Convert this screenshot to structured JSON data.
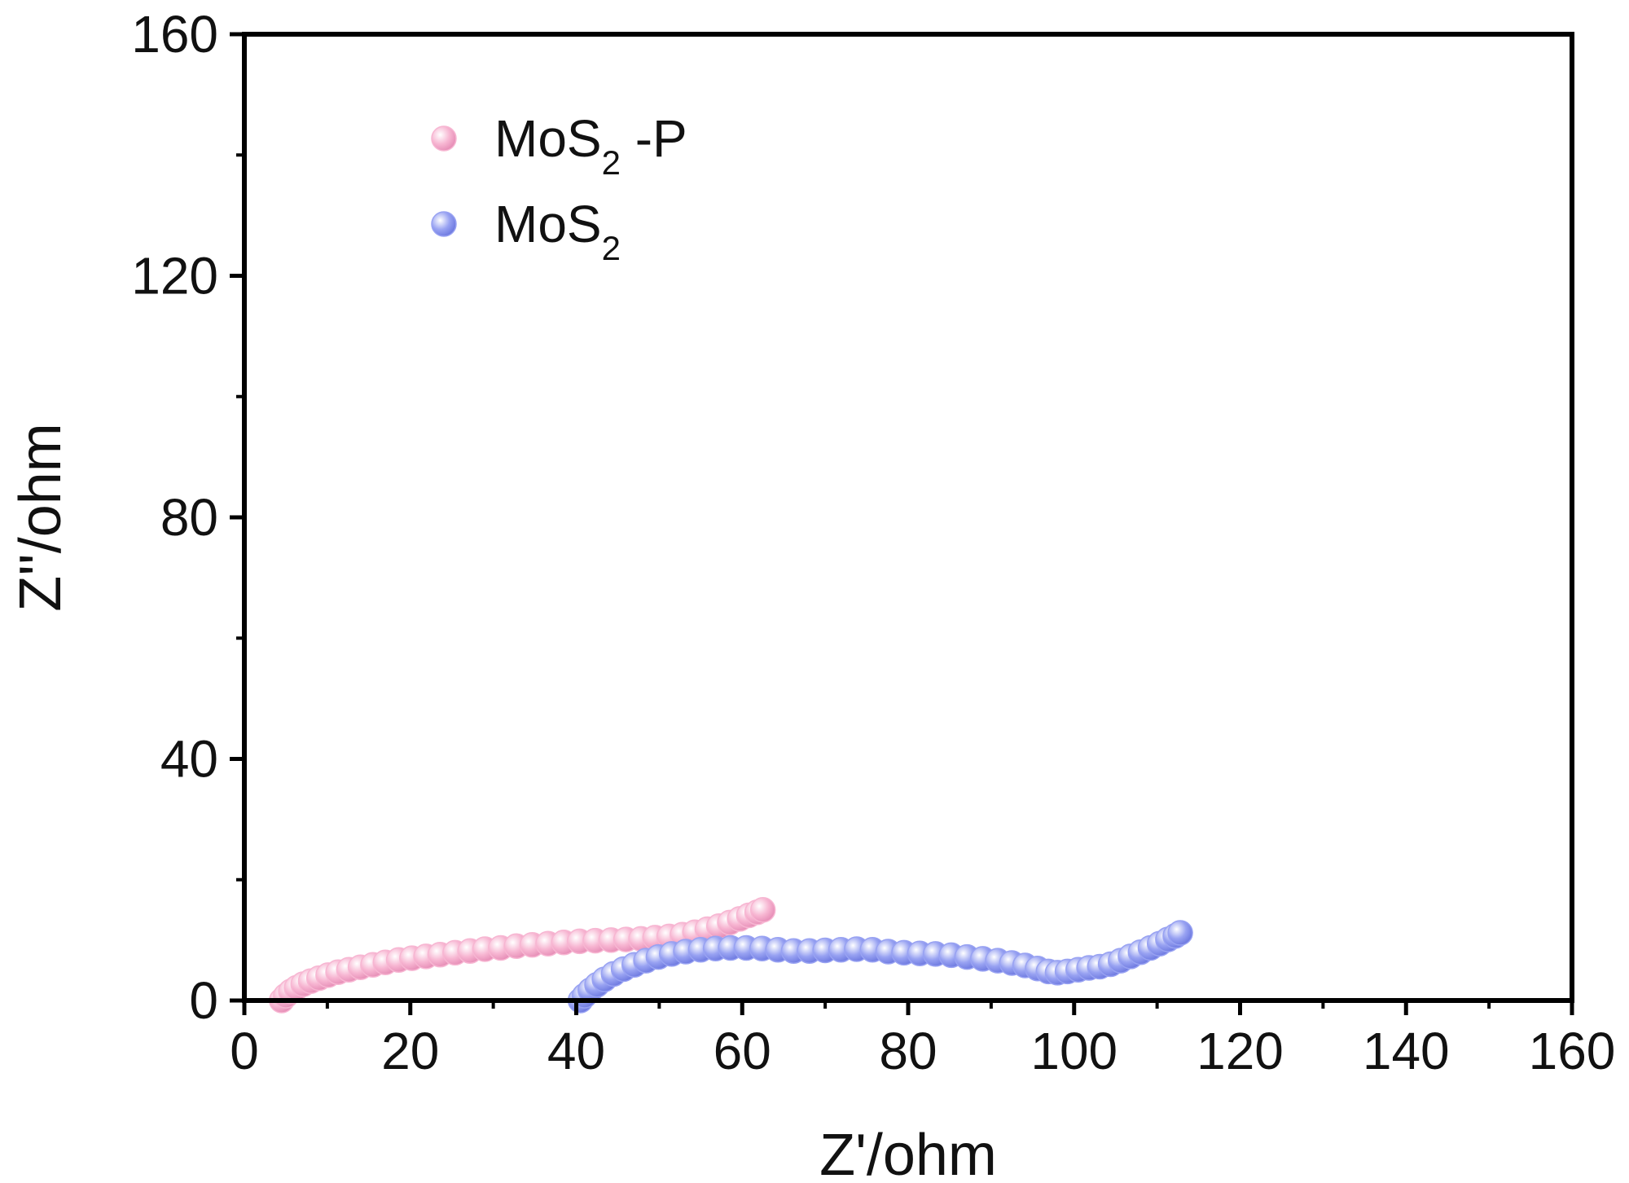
{
  "chart_data": {
    "type": "scatter",
    "xlabel": "Z'/ohm",
    "ylabel": "Z''/ohm",
    "xlim": [
      0,
      160
    ],
    "ylim": [
      0,
      160
    ],
    "x_ticks": [
      0,
      20,
      40,
      60,
      80,
      100,
      120,
      140,
      160
    ],
    "y_ticks": [
      0,
      40,
      80,
      120,
      160
    ],
    "x_tick_labels": [
      "0",
      "20",
      "40",
      "60",
      "80",
      "100",
      "120",
      "140",
      "160"
    ],
    "y_tick_labels": [
      "0",
      "40",
      "80",
      "120",
      "160"
    ],
    "grid": false,
    "legend_position": "top-left",
    "series": [
      {
        "name": "MoS2 -P",
        "legend_main": "MoS",
        "legend_sub": "2",
        "legend_suffix": " -P",
        "color": "#f7b6d2",
        "points": [
          [
            4.5,
            0.0
          ],
          [
            5.0,
            0.8
          ],
          [
            5.6,
            1.5
          ],
          [
            6.3,
            2.1
          ],
          [
            7.1,
            2.7
          ],
          [
            8.0,
            3.2
          ],
          [
            9.0,
            3.7
          ],
          [
            10.1,
            4.2
          ],
          [
            11.3,
            4.7
          ],
          [
            12.6,
            5.1
          ],
          [
            14.0,
            5.5
          ],
          [
            15.5,
            5.9
          ],
          [
            17.0,
            6.3
          ],
          [
            18.6,
            6.7
          ],
          [
            20.2,
            7.0
          ],
          [
            21.9,
            7.3
          ],
          [
            23.6,
            7.6
          ],
          [
            25.4,
            7.9
          ],
          [
            27.2,
            8.2
          ],
          [
            29.0,
            8.5
          ],
          [
            30.9,
            8.7
          ],
          [
            32.8,
            9.0
          ],
          [
            34.7,
            9.2
          ],
          [
            36.6,
            9.4
          ],
          [
            38.5,
            9.6
          ],
          [
            40.4,
            9.8
          ],
          [
            42.3,
            9.9
          ],
          [
            44.2,
            10.0
          ],
          [
            46.0,
            10.1
          ],
          [
            47.8,
            10.2
          ],
          [
            49.5,
            10.4
          ],
          [
            51.2,
            10.6
          ],
          [
            52.8,
            10.9
          ],
          [
            54.3,
            11.3
          ],
          [
            55.8,
            11.8
          ],
          [
            57.2,
            12.3
          ],
          [
            58.5,
            12.9
          ],
          [
            59.7,
            13.5
          ],
          [
            60.8,
            14.1
          ],
          [
            61.8,
            14.6
          ],
          [
            62.5,
            15.0
          ]
        ]
      },
      {
        "name": "MoS2",
        "legend_main": "MoS",
        "legend_sub": "2",
        "legend_suffix": "",
        "color": "#98a2f2",
        "points": [
          [
            40.5,
            0.0
          ],
          [
            41.0,
            0.8
          ],
          [
            41.7,
            1.7
          ],
          [
            42.5,
            2.6
          ],
          [
            43.4,
            3.5
          ],
          [
            44.5,
            4.4
          ],
          [
            45.7,
            5.2
          ],
          [
            47.0,
            5.9
          ],
          [
            48.4,
            6.6
          ],
          [
            49.9,
            7.2
          ],
          [
            51.5,
            7.7
          ],
          [
            53.2,
            8.1
          ],
          [
            55.0,
            8.4
          ],
          [
            56.8,
            8.6
          ],
          [
            58.6,
            8.7
          ],
          [
            60.5,
            8.7
          ],
          [
            62.4,
            8.6
          ],
          [
            64.3,
            8.4
          ],
          [
            66.2,
            8.2
          ],
          [
            68.1,
            8.2
          ],
          [
            70.0,
            8.3
          ],
          [
            71.9,
            8.4
          ],
          [
            73.8,
            8.5
          ],
          [
            75.7,
            8.4
          ],
          [
            77.6,
            8.1
          ],
          [
            79.5,
            7.9
          ],
          [
            81.4,
            7.8
          ],
          [
            83.3,
            7.7
          ],
          [
            85.2,
            7.5
          ],
          [
            87.1,
            7.2
          ],
          [
            89.0,
            6.9
          ],
          [
            90.8,
            6.6
          ],
          [
            92.5,
            6.2
          ],
          [
            94.1,
            5.8
          ],
          [
            95.6,
            5.3
          ],
          [
            96.9,
            4.8
          ],
          [
            98.0,
            4.6
          ],
          [
            99.2,
            4.8
          ],
          [
            100.5,
            5.1
          ],
          [
            101.8,
            5.4
          ],
          [
            103.1,
            5.6
          ],
          [
            104.4,
            6.0
          ],
          [
            105.6,
            6.6
          ],
          [
            106.8,
            7.3
          ],
          [
            108.0,
            8.0
          ],
          [
            109.2,
            8.7
          ],
          [
            110.3,
            9.4
          ],
          [
            111.3,
            10.1
          ],
          [
            112.2,
            10.7
          ],
          [
            112.8,
            11.2
          ]
        ]
      }
    ]
  }
}
